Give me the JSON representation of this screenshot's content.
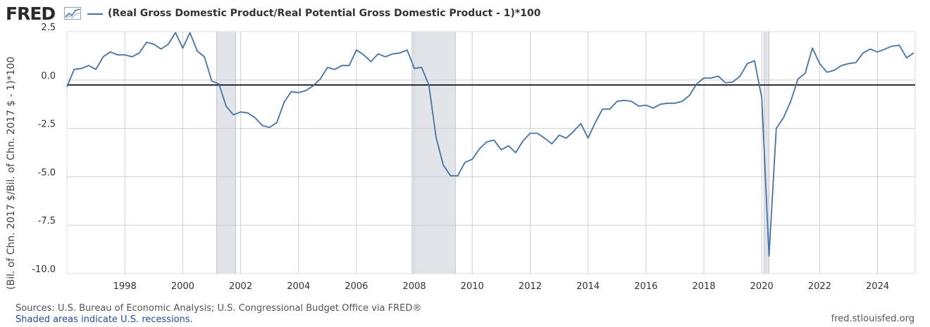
{
  "header": {
    "logo_text": "FRED",
    "logo_icon": "chart-line-icon",
    "series_label": "(Real Gross Domestic Product/Real Potential Gross Domestic Product - 1)*100"
  },
  "colors": {
    "line": "#4572a7",
    "recession": "#e1e5ea",
    "grid": "#cfcfcf",
    "zero_line": "#000000",
    "axis_text": "#333333"
  },
  "footer": {
    "sources": "Sources: U.S. Bureau of Economic Analysis; U.S. Congressional Budget Office via FRED®",
    "shaded_note": "Shaded areas indicate U.S. recessions.",
    "url": "fred.stlouisfed.org"
  },
  "chart_data": {
    "type": "line",
    "title": "(Real Gross Domestic Product/Real Potential Gross Domestic Product - 1)*100",
    "ylabel": "(Bil. of Chn. 2017 $/Bil. of Chn. 2017 $ - 1)*100",
    "xlabel": "",
    "xlim": [
      1996.0,
      2025.3
    ],
    "ylim": [
      -10.0,
      2.5
    ],
    "y_ticks": [
      2.5,
      0.0,
      -2.5,
      -5.0,
      -7.5,
      -10.0
    ],
    "y_tick_labels": [
      "2.5",
      "0.0",
      "-2.5",
      "-5.0",
      "-7.5",
      "-10.0"
    ],
    "x_ticks": [
      1998,
      2000,
      2002,
      2004,
      2006,
      2008,
      2010,
      2012,
      2014,
      2016,
      2018,
      2020,
      2022,
      2024
    ],
    "x_tick_labels": [
      "1998",
      "2000",
      "2002",
      "2004",
      "2006",
      "2008",
      "2010",
      "2012",
      "2014",
      "2016",
      "2018",
      "2020",
      "2022",
      "2024"
    ],
    "grid": true,
    "recessions": [
      [
        2001.17,
        2001.83
      ],
      [
        2007.92,
        2009.42
      ],
      [
        2020.08,
        2020.25
      ]
    ],
    "series": [
      {
        "name": "(Real Gross Domestic Product/Real Potential Gross Domestic Product - 1)*100",
        "x": [
          1996.0,
          1996.25,
          1996.5,
          1996.75,
          1997.0,
          1997.25,
          1997.5,
          1997.75,
          1998.0,
          1998.25,
          1998.5,
          1998.75,
          1999.0,
          1999.25,
          1999.5,
          1999.75,
          2000.0,
          2000.25,
          2000.5,
          2000.75,
          2001.0,
          2001.25,
          2001.5,
          2001.75,
          2002.0,
          2002.25,
          2002.5,
          2002.75,
          2003.0,
          2003.25,
          2003.5,
          2003.75,
          2004.0,
          2004.25,
          2004.5,
          2004.75,
          2005.0,
          2005.25,
          2005.5,
          2005.75,
          2006.0,
          2006.25,
          2006.5,
          2006.75,
          2007.0,
          2007.25,
          2007.5,
          2007.75,
          2008.0,
          2008.25,
          2008.5,
          2008.75,
          2009.0,
          2009.25,
          2009.5,
          2009.75,
          2010.0,
          2010.25,
          2010.5,
          2010.75,
          2011.0,
          2011.25,
          2011.5,
          2011.75,
          2012.0,
          2012.25,
          2012.5,
          2012.75,
          2013.0,
          2013.25,
          2013.5,
          2013.75,
          2014.0,
          2014.25,
          2014.5,
          2014.75,
          2015.0,
          2015.25,
          2015.5,
          2015.75,
          2016.0,
          2016.25,
          2016.5,
          2016.75,
          2017.0,
          2017.25,
          2017.5,
          2017.75,
          2018.0,
          2018.25,
          2018.5,
          2018.75,
          2019.0,
          2019.25,
          2019.5,
          2019.75,
          2020.0,
          2020.25,
          2020.5,
          2020.75,
          2021.0,
          2021.25,
          2021.5,
          2021.75,
          2022.0,
          2022.25,
          2022.5,
          2022.75,
          2023.0,
          2023.25,
          2023.5,
          2023.75,
          2024.0,
          2024.25,
          2024.5,
          2024.75,
          2025.0,
          2025.25
        ],
        "values": [
          -0.35,
          0.55,
          0.6,
          0.75,
          0.55,
          1.2,
          1.45,
          1.3,
          1.3,
          1.2,
          1.4,
          1.95,
          1.85,
          1.6,
          1.85,
          2.45,
          1.65,
          2.45,
          1.5,
          1.2,
          -0.05,
          -0.2,
          -1.35,
          -1.8,
          -1.65,
          -1.7,
          -1.95,
          -2.35,
          -2.45,
          -2.2,
          -1.15,
          -0.6,
          -0.65,
          -0.55,
          -0.3,
          0.05,
          0.65,
          0.55,
          0.75,
          0.75,
          1.55,
          1.3,
          0.95,
          1.35,
          1.2,
          1.35,
          1.4,
          1.55,
          0.6,
          0.65,
          -0.25,
          -2.95,
          -4.4,
          -4.95,
          -4.95,
          -4.25,
          -4.1,
          -3.55,
          -3.2,
          -3.1,
          -3.6,
          -3.4,
          -3.75,
          -3.15,
          -2.75,
          -2.75,
          -3.0,
          -3.3,
          -2.85,
          -3.0,
          -2.65,
          -2.25,
          -3.0,
          -2.2,
          -1.5,
          -1.5,
          -1.1,
          -1.05,
          -1.1,
          -1.35,
          -1.3,
          -1.45,
          -1.25,
          -1.2,
          -1.2,
          -1.1,
          -0.8,
          -0.2,
          0.1,
          0.1,
          0.2,
          -0.15,
          -0.1,
          0.2,
          0.85,
          1.0,
          -0.9,
          -9.1,
          -2.5,
          -1.95,
          -1.1,
          0.05,
          0.35,
          1.65,
          0.85,
          0.4,
          0.5,
          0.75,
          0.85,
          0.9,
          1.4,
          1.6,
          1.45,
          1.6,
          1.75,
          1.8,
          1.15,
          1.4
        ]
      }
    ]
  }
}
